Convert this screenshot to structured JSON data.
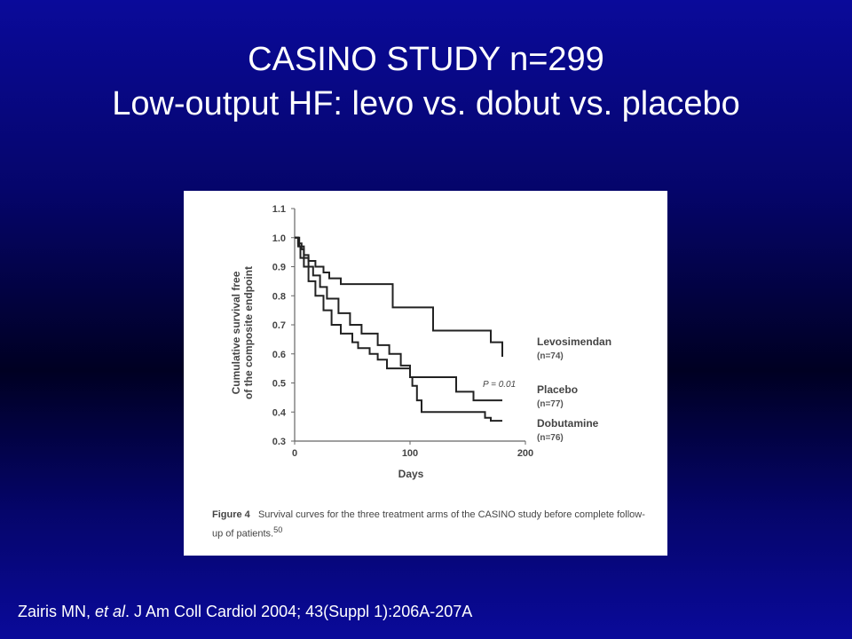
{
  "slide": {
    "title_line1": "CASINO STUDY n=299",
    "title_line2": "Low-output HF: levo vs. dobut vs. placebo",
    "citation_author": "Zairis MN, ",
    "citation_etal": "et al",
    "citation_rest": ". J Am Coll Cardiol 2004; 43(Suppl 1):206A-207A",
    "background_color": "#0a0a9a"
  },
  "figure": {
    "caption_number": "Figure 4",
    "caption_text": "Survival curves for the three treatment arms of the CASINO study before complete follow-up of patients.",
    "caption_superscript": "50"
  },
  "chart_data": {
    "type": "line",
    "step": true,
    "xlabel": "Days",
    "ylabel": "Cumulative survival free of the composite endpoint",
    "xlim": [
      0,
      200
    ],
    "ylim": [
      0.3,
      1.1
    ],
    "xticks": [
      0,
      100,
      200
    ],
    "yticks": [
      0.3,
      0.4,
      0.5,
      0.6,
      0.7,
      0.8,
      0.9,
      1.0,
      1.1
    ],
    "ytick_labels": [
      "0.3",
      "0.4",
      "0.5",
      "0.6",
      "0.7",
      "0.8",
      "0.9",
      "1.0",
      "1.1"
    ],
    "xtick_labels": [
      "0",
      "100",
      "200"
    ],
    "annotation": "P = 0.01",
    "grid": false,
    "legend_position": "right",
    "series": [
      {
        "name": "Levosimendan",
        "n_label": "(n=74)",
        "color": "#222222",
        "x": [
          0,
          3,
          6,
          8,
          12,
          18,
          25,
          30,
          40,
          60,
          85,
          105,
          120,
          145,
          170,
          180
        ],
        "y": [
          1.0,
          0.98,
          0.96,
          0.94,
          0.92,
          0.9,
          0.88,
          0.86,
          0.84,
          0.84,
          0.76,
          0.76,
          0.68,
          0.68,
          0.64,
          0.59
        ]
      },
      {
        "name": "Placebo",
        "n_label": "(n=77)",
        "color": "#222222",
        "x": [
          0,
          4,
          8,
          12,
          16,
          22,
          28,
          38,
          48,
          58,
          72,
          82,
          92,
          100,
          110,
          120,
          140,
          155,
          180
        ],
        "y": [
          1.0,
          0.97,
          0.93,
          0.9,
          0.87,
          0.83,
          0.79,
          0.74,
          0.7,
          0.67,
          0.63,
          0.6,
          0.56,
          0.52,
          0.52,
          0.52,
          0.47,
          0.44,
          0.44
        ]
      },
      {
        "name": "Dobutamine",
        "n_label": "(n=76)",
        "color": "#222222",
        "x": [
          0,
          3,
          5,
          8,
          12,
          18,
          25,
          32,
          40,
          50,
          55,
          65,
          72,
          80,
          90,
          100,
          102,
          106,
          110,
          140,
          165,
          170,
          180
        ],
        "y": [
          1.0,
          0.97,
          0.93,
          0.9,
          0.85,
          0.8,
          0.75,
          0.7,
          0.67,
          0.64,
          0.62,
          0.6,
          0.58,
          0.55,
          0.55,
          0.52,
          0.49,
          0.44,
          0.4,
          0.4,
          0.38,
          0.37,
          0.37
        ]
      }
    ]
  }
}
